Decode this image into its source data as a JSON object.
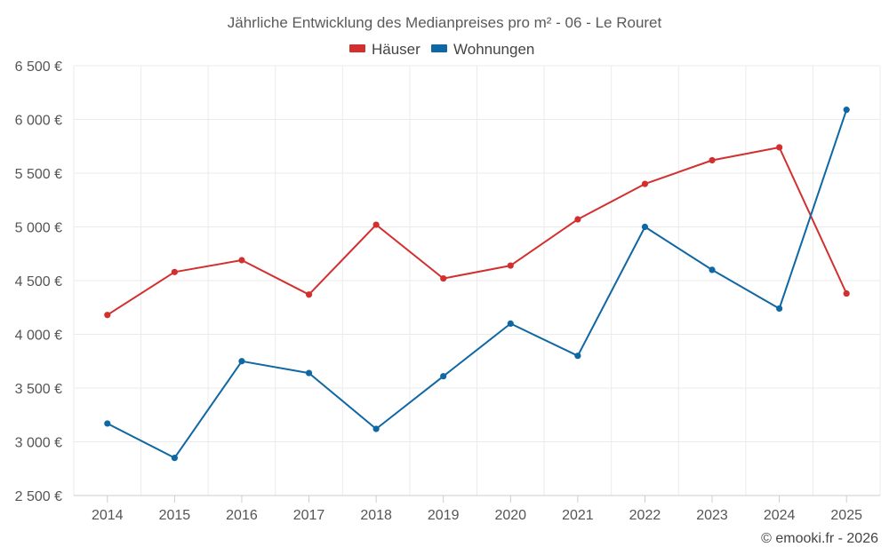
{
  "chart_data": {
    "type": "line",
    "title": "Jährliche Entwicklung des Medianpreises pro m² - 06 - Le Rouret",
    "xlabel": "",
    "ylabel": "",
    "categories": [
      "2014",
      "2015",
      "2016",
      "2017",
      "2018",
      "2019",
      "2020",
      "2021",
      "2022",
      "2023",
      "2024",
      "2025"
    ],
    "series": [
      {
        "name": "Häuser",
        "color": "#d32f2f",
        "values": [
          4180,
          4580,
          4690,
          4370,
          5020,
          4520,
          4640,
          5070,
          5400,
          5620,
          5740,
          4380
        ]
      },
      {
        "name": "Wohnungen",
        "color": "#0f67a3",
        "values": [
          3170,
          2850,
          3750,
          3640,
          3120,
          3610,
          4100,
          3800,
          5000,
          4600,
          4240,
          6090
        ]
      }
    ],
    "ylim": [
      2500,
      6500
    ],
    "yticks": [
      2500,
      3000,
      3500,
      4000,
      4500,
      5000,
      5500,
      6000,
      6500
    ],
    "ytick_labels": [
      "2 500 €",
      "3 000 €",
      "3 500 €",
      "4 000 €",
      "4 500 €",
      "5 000 €",
      "5 500 €",
      "6 000 €",
      "6 500 €"
    ],
    "grid": true,
    "legend_position": "top-center"
  },
  "credit": "© emooki.fr - 2026"
}
